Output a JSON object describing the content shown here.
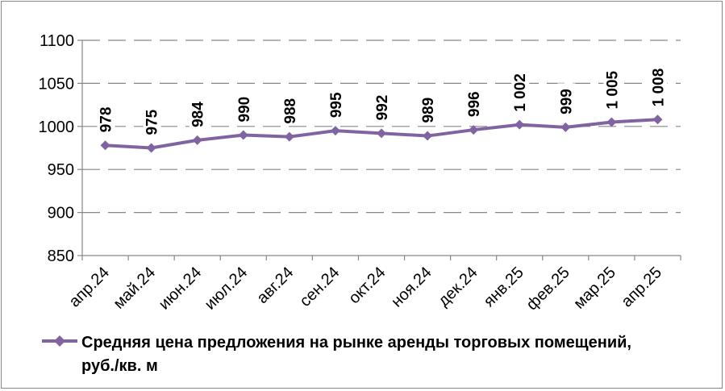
{
  "chart_data": {
    "type": "line",
    "categories": [
      "апр.24",
      "май.24",
      "июн.24",
      "июл.24",
      "авг.24",
      "сен.24",
      "окт.24",
      "ноя.24",
      "дек.24",
      "янв.25",
      "фев.25",
      "мар.25",
      "апр.25"
    ],
    "series": [
      {
        "name": "Средняя цена предложения на рынке аренды торговых помещений, руб./кв. м",
        "values": [
          978,
          975,
          984,
          990,
          988,
          995,
          992,
          989,
          996,
          1002,
          999,
          1005,
          1008
        ],
        "labels": [
          "978",
          "975",
          "984",
          "990",
          "988",
          "995",
          "992",
          "989",
          "996",
          "1 002",
          "999",
          "1 005",
          "1 008"
        ],
        "color": "#8064A2"
      }
    ],
    "ylim": [
      850,
      1100
    ],
    "yticks": [
      850,
      900,
      950,
      1000,
      1050,
      1100
    ],
    "ytick_labels": [
      "850",
      "900",
      "950",
      "1000",
      "1050",
      "1100"
    ],
    "grid": "horizontal dashed",
    "legend": "bottom",
    "legend_lines": [
      "Средняя цена предложения на рынке аренды торговых помещений,",
      "руб./кв. м"
    ]
  }
}
